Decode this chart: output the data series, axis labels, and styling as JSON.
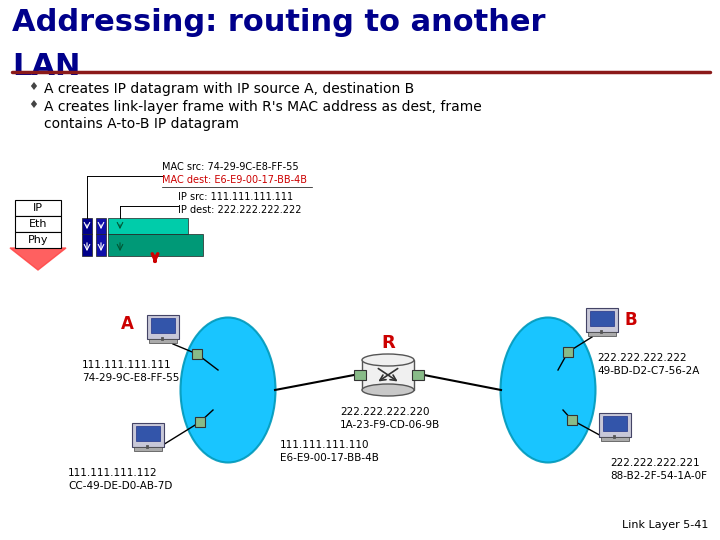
{
  "title_line1": "Addressing: routing to another",
  "title_line2": "LAN",
  "title_color": "#00008B",
  "title_fontsize": 22,
  "underline_color": "#8B1A1A",
  "bullet1": "A creates IP datagram with IP source A, destination B",
  "bullet2": "A creates link-layer frame with R's MAC address as dest, frame\ncontains A-to-B IP datagram",
  "bullet_fontsize": 10,
  "bullet_color": "#000000",
  "mac_src_text": "MAC src: 74-29-9C-E8-FF-55",
  "mac_dest_text": "MAC dest: E6-E9-00-17-BB-4B",
  "mac_dest_color": "#CC0000",
  "ip_src_text": "IP src: 111.111.111.111",
  "ip_dest_text": "IP dest: 222.222.222.222",
  "node_A_label": "A",
  "node_B_label": "B",
  "node_R_label": "R",
  "node_A_color": "#CC0000",
  "node_B_color": "#CC0000",
  "node_R_color": "#CC0000",
  "lan_left_color": "#00BFFF",
  "lan_right_color": "#00BFFF",
  "addr_A": "111.111.111.111\n74-29-9C-E8-FF-55",
  "addr_A2": "111.111.111.112\nCC-49-DE-D0-AB-7D",
  "addr_B": "222.222.222.222\n49-BD-D2-C7-56-2A",
  "addr_B2": "222.222.222.221\n88-B2-2F-54-1A-0F",
  "addr_R": "222.222.222.220\n1A-23-F9-CD-06-9B",
  "addr_R_left": "111.111.111.110\nE6-E9-00-17-BB-4B",
  "footer": "Link Layer 5-41",
  "bg_color": "#FFFFFF"
}
